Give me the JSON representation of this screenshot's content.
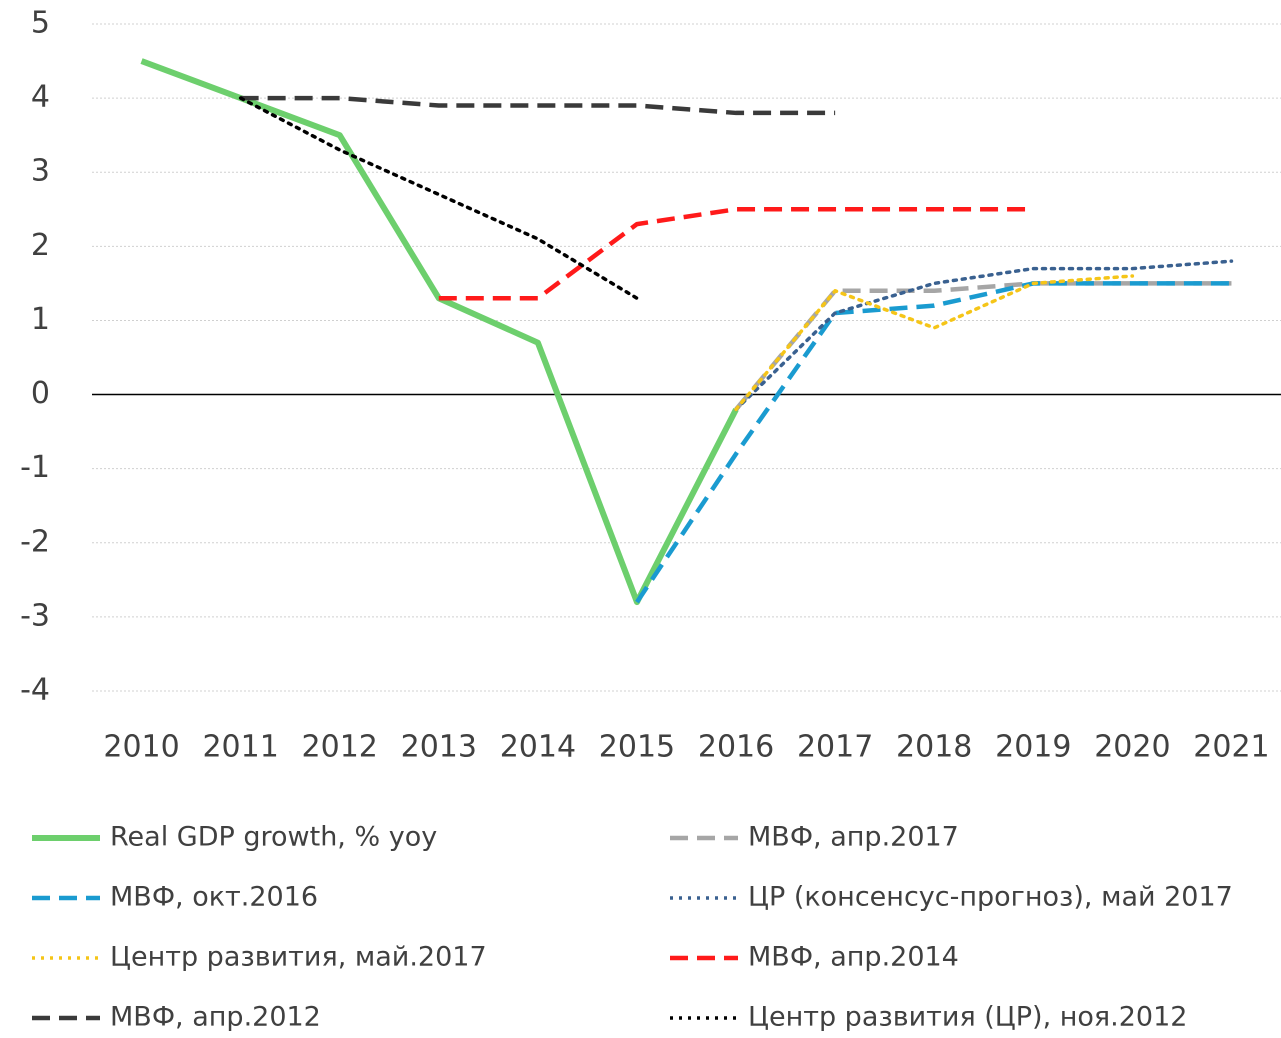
{
  "chart_data": {
    "type": "line",
    "categories": [
      "2010",
      "2011",
      "2012",
      "2013",
      "2014",
      "2015",
      "2016",
      "2017",
      "2018",
      "2019",
      "2020",
      "2021"
    ],
    "ylim": [
      -4,
      5
    ],
    "yticks": [
      -4,
      -3,
      -2,
      -1,
      0,
      1,
      2,
      3,
      4,
      5
    ],
    "grid": true,
    "series": [
      {
        "name": "Real GDP growth, % yoy",
        "color": "#6dcf6d",
        "dash": "solid",
        "values": [
          4.5,
          4.0,
          3.5,
          1.3,
          0.7,
          -2.8,
          -0.2,
          null,
          null,
          null,
          null,
          null
        ]
      },
      {
        "name": "МВФ, апр.2017",
        "color": "#a6a6a6",
        "dash": "dashed",
        "values": [
          null,
          null,
          null,
          null,
          null,
          null,
          -0.2,
          1.4,
          1.4,
          1.5,
          1.5,
          1.5
        ]
      },
      {
        "name": "МВФ, окт.2016",
        "color": "#1a9bd0",
        "dash": "dashed",
        "values": [
          null,
          null,
          null,
          null,
          null,
          -2.8,
          -0.8,
          1.1,
          1.2,
          1.5,
          1.5,
          1.5
        ]
      },
      {
        "name": "ЦР (консенсус-прогноз), май 2017",
        "color": "#3a6190",
        "dash": "dotted",
        "values": [
          null,
          null,
          null,
          null,
          null,
          null,
          -0.2,
          1.1,
          1.5,
          1.7,
          1.7,
          1.8
        ]
      },
      {
        "name": "Центр развития, май.2017",
        "color": "#f5c518",
        "dash": "dotted",
        "values": [
          null,
          null,
          null,
          null,
          null,
          null,
          -0.2,
          1.4,
          0.9,
          1.5,
          1.6,
          null
        ]
      },
      {
        "name": "МВФ, апр.2014",
        "color": "#ff1a1a",
        "dash": "dashed",
        "values": [
          null,
          null,
          null,
          1.3,
          1.3,
          2.3,
          2.5,
          2.5,
          2.5,
          2.5,
          null,
          null
        ]
      },
      {
        "name": "МВФ, апр.2012",
        "color": "#3a3a3a",
        "dash": "dashed",
        "values": [
          null,
          4.0,
          4.0,
          3.9,
          3.9,
          3.9,
          3.8,
          3.8,
          null,
          null,
          null,
          null
        ]
      },
      {
        "name": "Центр развития (ЦР), ноя.2012",
        "color": "#000000",
        "dash": "dotted",
        "values": [
          null,
          4.0,
          3.3,
          2.7,
          2.1,
          1.3,
          null,
          null,
          null,
          null,
          null,
          null
        ]
      }
    ]
  }
}
